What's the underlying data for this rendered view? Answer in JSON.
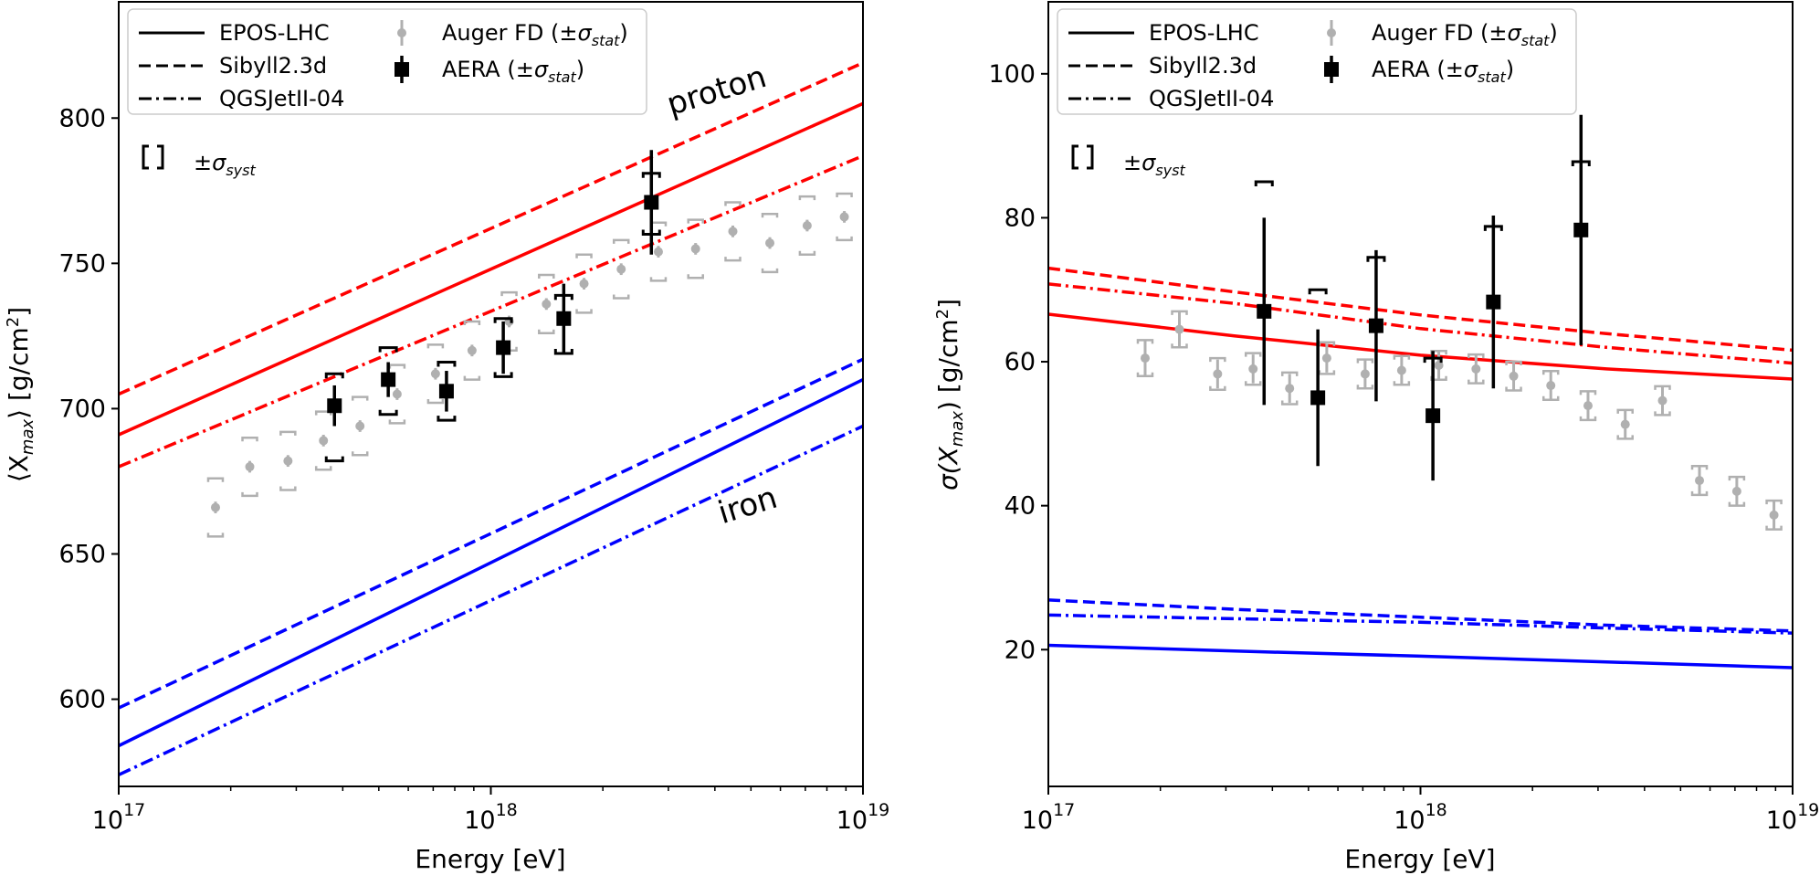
{
  "legend": {
    "models": [
      {
        "name": "EPOS-LHC",
        "dash": "solid"
      },
      {
        "name": "Sibyll2.3d",
        "dash": "dashed"
      },
      {
        "name": "QGSJetII-04",
        "dash": "dashdot"
      }
    ],
    "auger_main": "Auger FD (±",
    "aera_main": "AERA (±",
    "sigma_glyph": "σ",
    "stat_sub": "stat",
    "close_paren": ")",
    "syst_prefix": "±",
    "syst_sub": "syst"
  },
  "annotations": {
    "proton": "proton",
    "iron": "iron"
  },
  "colors": {
    "proton": "#ff0000",
    "iron": "#0000ff",
    "auger": "#b0b0b0",
    "aera": "#000000"
  },
  "chart_data": [
    {
      "type": "line",
      "title": "",
      "xlabel": "Energy [eV]",
      "ylabel_parts": {
        "open": "⟨X",
        "sub": "max",
        "close": "⟩ [g/cm",
        "sup": "2",
        "end": "]"
      },
      "xscale": "log",
      "xlim": [
        1e+17,
        1e+19
      ],
      "ylim": [
        570,
        840
      ],
      "xticks": [
        {
          "base": "10",
          "exp": "17"
        },
        {
          "base": "10",
          "exp": "18"
        },
        {
          "base": "10",
          "exp": "19"
        }
      ],
      "yticks": [
        600,
        650,
        700,
        750,
        800
      ],
      "series": [
        {
          "name": "EPOS-LHC proton",
          "model": "EPOS-LHC",
          "primary": "proton",
          "x": [
            1e+17,
            1e+19
          ],
          "y": [
            691,
            805
          ]
        },
        {
          "name": "Sibyll2.3d proton",
          "model": "Sibyll2.3d",
          "primary": "proton",
          "x": [
            1e+17,
            1e+19
          ],
          "y": [
            705,
            819
          ]
        },
        {
          "name": "QGSJetII-04 proton",
          "model": "QGSJetII-04",
          "primary": "proton",
          "x": [
            1e+17,
            1e+19
          ],
          "y": [
            680,
            787
          ]
        },
        {
          "name": "EPOS-LHC iron",
          "model": "EPOS-LHC",
          "primary": "iron",
          "x": [
            1e+17,
            1e+19
          ],
          "y": [
            584,
            710
          ]
        },
        {
          "name": "Sibyll2.3d iron",
          "model": "Sibyll2.3d",
          "primary": "iron",
          "x": [
            1e+17,
            1e+19
          ],
          "y": [
            597,
            717
          ]
        },
        {
          "name": "QGSJetII-04 iron",
          "model": "QGSJetII-04",
          "primary": "iron",
          "x": [
            1e+17,
            1e+19
          ],
          "y": [
            574,
            694
          ]
        }
      ],
      "auger_fd": [
        {
          "e": 1.82e+17,
          "y": 666,
          "stat": 2,
          "sys_lo": 10,
          "sys_hi": 10
        },
        {
          "e": 2.25e+17,
          "y": 680,
          "stat": 2,
          "sys_lo": 10,
          "sys_hi": 10
        },
        {
          "e": 2.85e+17,
          "y": 682,
          "stat": 2,
          "sys_lo": 10,
          "sys_hi": 10
        },
        {
          "e": 3.55e+17,
          "y": 689,
          "stat": 2,
          "sys_lo": 10,
          "sys_hi": 10
        },
        {
          "e": 4.45e+17,
          "y": 694,
          "stat": 2,
          "sys_lo": 10,
          "sys_hi": 10
        },
        {
          "e": 5.6e+17,
          "y": 705,
          "stat": 2,
          "sys_lo": 10,
          "sys_hi": 10
        },
        {
          "e": 7.1e+17,
          "y": 712,
          "stat": 2,
          "sys_lo": 10,
          "sys_hi": 10
        },
        {
          "e": 8.9e+17,
          "y": 720,
          "stat": 2,
          "sys_lo": 10,
          "sys_hi": 10
        },
        {
          "e": 1.12e+18,
          "y": 730,
          "stat": 2,
          "sys_lo": 10,
          "sys_hi": 10
        },
        {
          "e": 1.41e+18,
          "y": 736,
          "stat": 2,
          "sys_lo": 10,
          "sys_hi": 10
        },
        {
          "e": 1.78e+18,
          "y": 743,
          "stat": 2,
          "sys_lo": 10,
          "sys_hi": 10
        },
        {
          "e": 2.24e+18,
          "y": 748,
          "stat": 2,
          "sys_lo": 10,
          "sys_hi": 10
        },
        {
          "e": 2.82e+18,
          "y": 754,
          "stat": 2,
          "sys_lo": 10,
          "sys_hi": 10
        },
        {
          "e": 3.55e+18,
          "y": 755,
          "stat": 2,
          "sys_lo": 10,
          "sys_hi": 10
        },
        {
          "e": 4.47e+18,
          "y": 761,
          "stat": 2,
          "sys_lo": 10,
          "sys_hi": 10
        },
        {
          "e": 5.62e+18,
          "y": 757,
          "stat": 2,
          "sys_lo": 10,
          "sys_hi": 10
        },
        {
          "e": 7.08e+18,
          "y": 763,
          "stat": 2,
          "sys_lo": 10,
          "sys_hi": 10
        },
        {
          "e": 8.91e+18,
          "y": 766,
          "stat": 2,
          "sys_lo": 8,
          "sys_hi": 8
        }
      ],
      "aera": [
        {
          "e": 3.8e+17,
          "y": 701,
          "stat": 7,
          "sys_lo": 19,
          "sys_hi": 11
        },
        {
          "e": 5.3e+17,
          "y": 710,
          "stat": 6,
          "sys_lo": 12,
          "sys_hi": 11
        },
        {
          "e": 7.6e+17,
          "y": 706,
          "stat": 7,
          "sys_lo": 10,
          "sys_hi": 10
        },
        {
          "e": 1.08e+18,
          "y": 721,
          "stat": 9,
          "sys_lo": 10,
          "sys_hi": 10
        },
        {
          "e": 1.57e+18,
          "y": 731,
          "stat": 12,
          "sys_lo": 12,
          "sys_hi": 8
        },
        {
          "e": 2.7e+18,
          "y": 771,
          "stat": 18,
          "sys_lo": 11,
          "sys_hi": 10
        }
      ]
    },
    {
      "type": "line",
      "title": "",
      "xlabel": "Energy [eV]",
      "ylabel_parts": {
        "open": "σ(X",
        "sub": "max",
        "close": ") [g/cm",
        "sup": "2",
        "end": "]"
      },
      "xscale": "log",
      "xlim": [
        1e+17,
        1e+19
      ],
      "ylim": [
        1,
        110
      ],
      "xticks": [
        {
          "base": "10",
          "exp": "17"
        },
        {
          "base": "10",
          "exp": "18"
        },
        {
          "base": "10",
          "exp": "19"
        }
      ],
      "yticks": [
        20,
        40,
        60,
        80,
        100
      ],
      "series": [
        {
          "name": "EPOS-LHC proton",
          "model": "EPOS-LHC",
          "primary": "proton",
          "x": [
            1e+17,
            3.16e+17,
            1e+18,
            3.16e+18,
            1e+19
          ],
          "y": [
            66.6,
            63.6,
            60.9,
            59.0,
            57.6
          ]
        },
        {
          "name": "Sibyll2.3d proton",
          "model": "Sibyll2.3d",
          "primary": "proton",
          "x": [
            1e+17,
            3.16e+17,
            1e+18,
            3.16e+18,
            1e+19
          ],
          "y": [
            73.0,
            69.7,
            66.5,
            63.9,
            61.6
          ]
        },
        {
          "name": "QGSJetII-04 proton",
          "model": "QGSJetII-04",
          "primary": "proton",
          "x": [
            1e+17,
            3.16e+17,
            1e+18,
            3.16e+18,
            1e+19
          ],
          "y": [
            70.8,
            68.1,
            64.6,
            62.0,
            59.8
          ]
        },
        {
          "name": "EPOS-LHC iron",
          "model": "EPOS-LHC",
          "primary": "iron",
          "x": [
            1e+17,
            3.16e+17,
            1e+18,
            3.16e+18,
            1e+19
          ],
          "y": [
            20.6,
            19.8,
            19.1,
            18.3,
            17.5
          ]
        },
        {
          "name": "Sibyll2.3d iron",
          "model": "Sibyll2.3d",
          "primary": "iron",
          "x": [
            1e+17,
            3.16e+17,
            1e+18,
            3.16e+18,
            1e+19
          ],
          "y": [
            26.9,
            25.6,
            24.5,
            23.4,
            22.6
          ]
        },
        {
          "name": "QGSJetII-04 iron",
          "model": "QGSJetII-04",
          "primary": "iron",
          "x": [
            1e+17,
            3.16e+17,
            1e+18,
            3.16e+18,
            1e+19
          ],
          "y": [
            24.8,
            24.3,
            23.8,
            23.0,
            22.3
          ]
        }
      ],
      "auger_fd": [
        {
          "e": 1.82e+17,
          "y": 60.5,
          "stat": 2.5,
          "sys_lo": 2.5,
          "sys_hi": 2.5
        },
        {
          "e": 2.25e+17,
          "y": 64.5,
          "stat": 2.5,
          "sys_lo": 2.5,
          "sys_hi": 2.5
        },
        {
          "e": 2.85e+17,
          "y": 58.3,
          "stat": 2.0,
          "sys_lo": 2.2,
          "sys_hi": 2.2
        },
        {
          "e": 3.55e+17,
          "y": 59.0,
          "stat": 2.0,
          "sys_lo": 2.2,
          "sys_hi": 2.2
        },
        {
          "e": 4.45e+17,
          "y": 56.3,
          "stat": 2.0,
          "sys_lo": 2.2,
          "sys_hi": 2.2
        },
        {
          "e": 5.6e+17,
          "y": 60.5,
          "stat": 2.0,
          "sys_lo": 2.2,
          "sys_hi": 2.2
        },
        {
          "e": 7.1e+17,
          "y": 58.3,
          "stat": 2.0,
          "sys_lo": 2.0,
          "sys_hi": 2.0
        },
        {
          "e": 8.9e+17,
          "y": 58.8,
          "stat": 2.0,
          "sys_lo": 2.0,
          "sys_hi": 2.0
        },
        {
          "e": 1.12e+18,
          "y": 59.5,
          "stat": 2.0,
          "sys_lo": 2.0,
          "sys_hi": 2.0
        },
        {
          "e": 1.41e+18,
          "y": 59.0,
          "stat": 2.0,
          "sys_lo": 2.0,
          "sys_hi": 2.0
        },
        {
          "e": 1.78e+18,
          "y": 58.0,
          "stat": 2.0,
          "sys_lo": 2.0,
          "sys_hi": 2.0
        },
        {
          "e": 2.24e+18,
          "y": 56.7,
          "stat": 2.0,
          "sys_lo": 2.0,
          "sys_hi": 2.0
        },
        {
          "e": 2.82e+18,
          "y": 53.9,
          "stat": 2.0,
          "sys_lo": 2.0,
          "sys_hi": 2.0
        },
        {
          "e": 3.55e+18,
          "y": 51.3,
          "stat": 2.0,
          "sys_lo": 2.0,
          "sys_hi": 2.0
        },
        {
          "e": 4.47e+18,
          "y": 54.6,
          "stat": 2.0,
          "sys_lo": 2.0,
          "sys_hi": 2.0
        },
        {
          "e": 5.62e+18,
          "y": 43.5,
          "stat": 2.0,
          "sys_lo": 2.0,
          "sys_hi": 2.0
        },
        {
          "e": 7.08e+18,
          "y": 42.0,
          "stat": 2.0,
          "sys_lo": 2.0,
          "sys_hi": 2.0
        },
        {
          "e": 8.91e+18,
          "y": 38.7,
          "stat": 2.0,
          "sys_lo": 2.0,
          "sys_hi": 2.0
        }
      ],
      "aera": [
        {
          "e": 3.8e+17,
          "y": 67,
          "stat": 13,
          "sys_lo": 0,
          "sys_hi": 18
        },
        {
          "e": 5.3e+17,
          "y": 55,
          "stat": 9.5,
          "sys_lo": 0,
          "sys_hi": 15
        },
        {
          "e": 7.6e+17,
          "y": 65,
          "stat": 10.5,
          "sys_lo": 0,
          "sys_hi": 9.5
        },
        {
          "e": 1.08e+18,
          "y": 52.5,
          "stat": 9,
          "sys_lo": 0,
          "sys_hi": 8
        },
        {
          "e": 1.57e+18,
          "y": 68.3,
          "stat": 12,
          "sys_lo": 0,
          "sys_hi": 10.5
        },
        {
          "e": 2.7e+18,
          "y": 78.3,
          "stat": 16,
          "sys_lo": 0,
          "sys_hi": 9.5
        }
      ]
    }
  ]
}
